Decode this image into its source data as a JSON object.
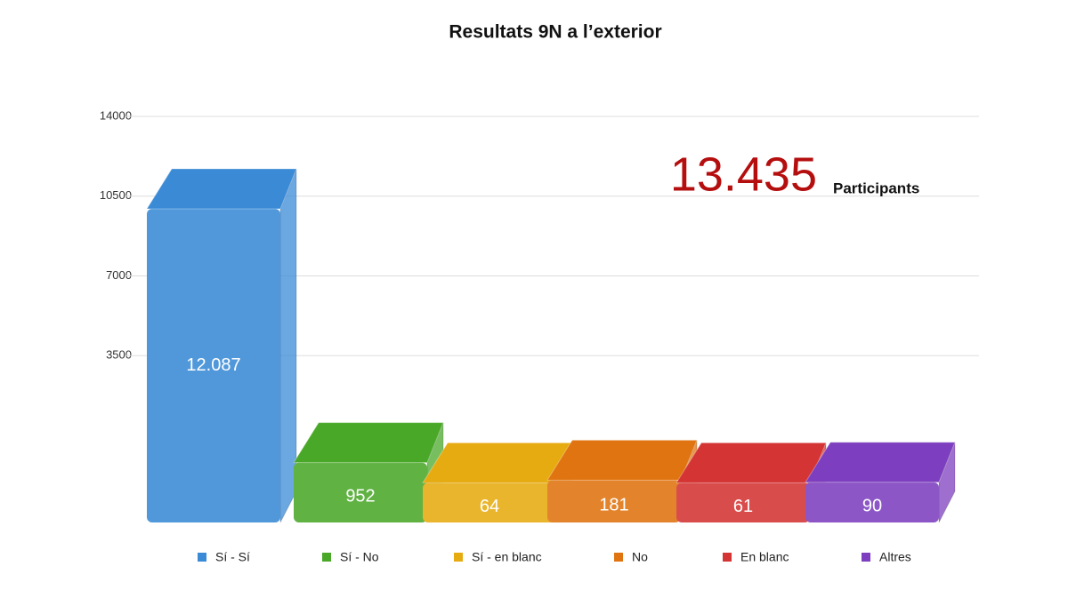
{
  "chart_data": {
    "type": "bar",
    "title": "Resultats 9N a l’exterior",
    "categories": [
      "Sí - Sí",
      "Sí - No",
      "Sí - en blanc",
      "No",
      "En blanc",
      "Altres"
    ],
    "values": [
      12087,
      952,
      64,
      181,
      61,
      90
    ],
    "value_labels": [
      "12.087",
      "952",
      "64",
      "181",
      "61",
      "90"
    ],
    "colors": [
      "#3a8ad6",
      "#4aa829",
      "#e6ab10",
      "#e07410",
      "#d43434",
      "#7d3fbf"
    ],
    "ylim": [
      0,
      14000
    ],
    "yticks": [
      3500,
      7000,
      10500,
      14000
    ],
    "grid": true,
    "annotation": {
      "text": "13.435",
      "caption": "Participants"
    }
  }
}
